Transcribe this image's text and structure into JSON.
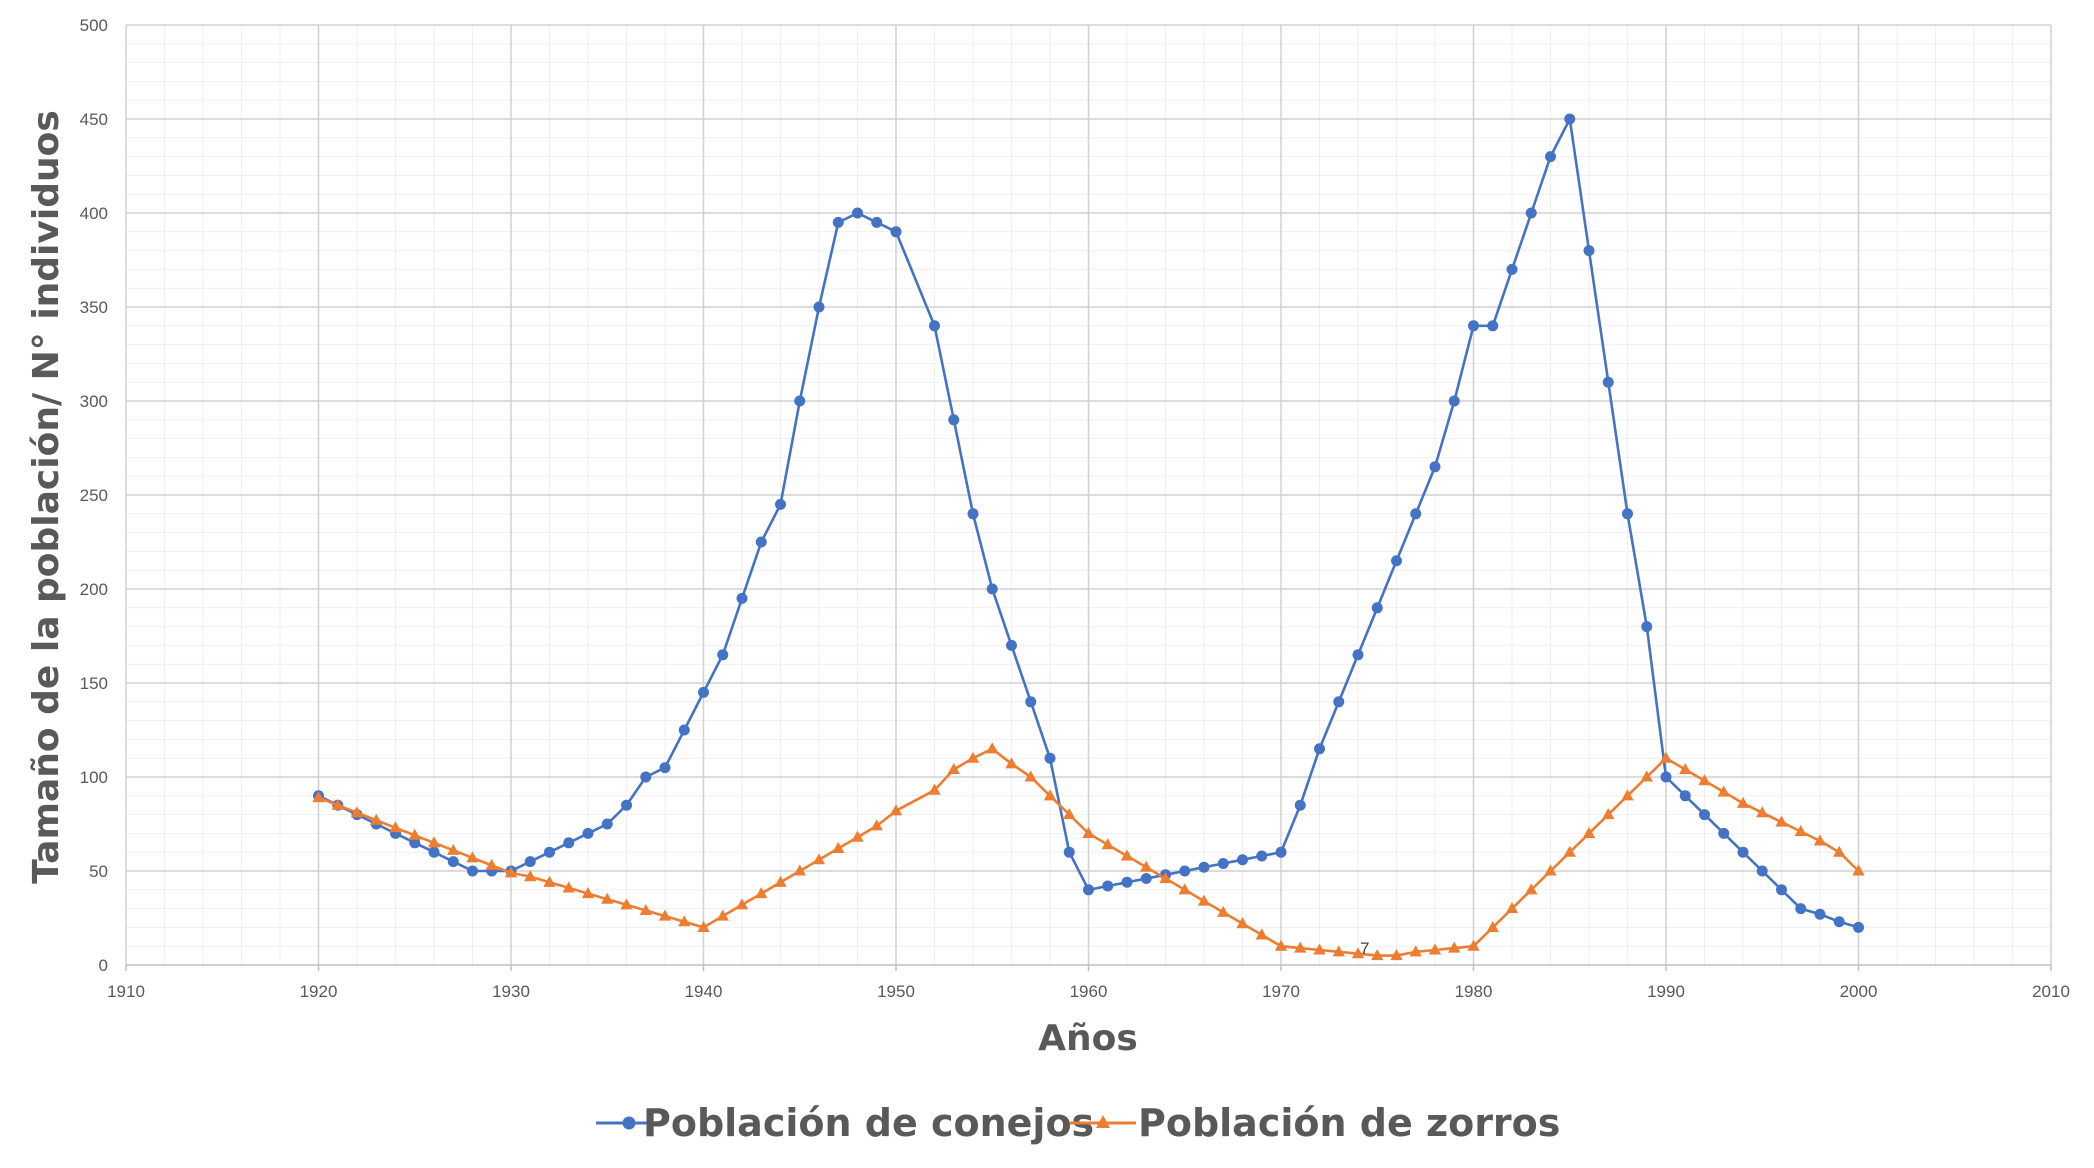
{
  "chart_data": {
    "type": "line",
    "title": "",
    "xlabel": "Años",
    "ylabel": "Tamaño de la población/ N° individuos",
    "xlim": [
      1910,
      2010
    ],
    "ylim": [
      0,
      500
    ],
    "xticks": [
      1910,
      1920,
      1930,
      1940,
      1950,
      1960,
      1970,
      1980,
      1990,
      2000,
      2010
    ],
    "yticks": [
      0,
      50,
      100,
      150,
      200,
      250,
      300,
      350,
      400,
      450,
      500
    ],
    "grid": true,
    "legend": "bottom",
    "annotations": [
      {
        "text": "7",
        "x": 1974,
        "y": 7
      }
    ],
    "series": [
      {
        "name": "Población de conejos",
        "color": "#4472C4",
        "marker": "circle",
        "x": [
          1920,
          1921,
          1922,
          1923,
          1924,
          1925,
          1926,
          1927,
          1928,
          1929,
          1930,
          1931,
          1932,
          1933,
          1934,
          1935,
          1936,
          1937,
          1938,
          1939,
          1940,
          1941,
          1942,
          1943,
          1944,
          1945,
          1946,
          1947,
          1948,
          1949,
          1950,
          1952,
          1953,
          1954,
          1955,
          1956,
          1957,
          1958,
          1959,
          1960,
          1961,
          1962,
          1963,
          1964,
          1965,
          1966,
          1967,
          1968,
          1969,
          1970,
          1971,
          1972,
          1973,
          1974,
          1975,
          1976,
          1977,
          1978,
          1979,
          1980,
          1981,
          1982,
          1983,
          1984,
          1985,
          1986,
          1987,
          1988,
          1989,
          1990,
          1991,
          1992,
          1993,
          1994,
          1995,
          1996,
          1997,
          1998,
          1999,
          2000
        ],
        "y": [
          90,
          85,
          80,
          75,
          70,
          65,
          60,
          55,
          50,
          50,
          50,
          55,
          60,
          65,
          70,
          75,
          85,
          100,
          105,
          125,
          145,
          165,
          195,
          225,
          245,
          300,
          350,
          395,
          400,
          395,
          390,
          340,
          290,
          240,
          200,
          170,
          140,
          110,
          60,
          40,
          42,
          44,
          46,
          48,
          50,
          52,
          54,
          56,
          58,
          60,
          85,
          115,
          140,
          165,
          190,
          215,
          240,
          265,
          300,
          340,
          340,
          370,
          400,
          430,
          450,
          380,
          310,
          240,
          180,
          100,
          90,
          80,
          70,
          60,
          50,
          40,
          30,
          27,
          23,
          20
        ]
      },
      {
        "name": "Población de zorros",
        "color": "#ED7D31",
        "marker": "triangle",
        "x": [
          1920,
          1921,
          1922,
          1923,
          1924,
          1925,
          1926,
          1927,
          1928,
          1929,
          1930,
          1931,
          1932,
          1933,
          1934,
          1935,
          1936,
          1937,
          1938,
          1939,
          1940,
          1941,
          1942,
          1943,
          1944,
          1945,
          1946,
          1947,
          1948,
          1949,
          1950,
          1952,
          1953,
          1954,
          1955,
          1956,
          1957,
          1958,
          1959,
          1960,
          1961,
          1962,
          1963,
          1964,
          1965,
          1966,
          1967,
          1968,
          1969,
          1970,
          1971,
          1972,
          1973,
          1974,
          1975,
          1976,
          1977,
          1978,
          1979,
          1980,
          1981,
          1982,
          1983,
          1984,
          1985,
          1986,
          1987,
          1988,
          1989,
          1990,
          1991,
          1992,
          1993,
          1994,
          1995,
          1996,
          1997,
          1998,
          1999,
          2000
        ],
        "y": [
          89,
          85,
          81,
          77,
          73,
          69,
          65,
          61,
          57,
          53,
          49,
          47,
          44,
          41,
          38,
          35,
          32,
          29,
          26,
          23,
          20,
          26,
          32,
          38,
          44,
          50,
          56,
          62,
          68,
          74,
          82,
          93,
          104,
          110,
          115,
          107,
          100,
          90,
          80,
          70,
          64,
          58,
          52,
          46,
          40,
          34,
          28,
          22,
          16,
          10,
          9,
          8,
          7,
          6,
          5,
          5,
          7,
          8,
          9,
          10,
          20,
          30,
          40,
          50,
          60,
          70,
          80,
          90,
          100,
          110,
          104,
          98,
          92,
          86,
          81,
          76,
          71,
          66,
          60,
          50
        ]
      }
    ]
  }
}
